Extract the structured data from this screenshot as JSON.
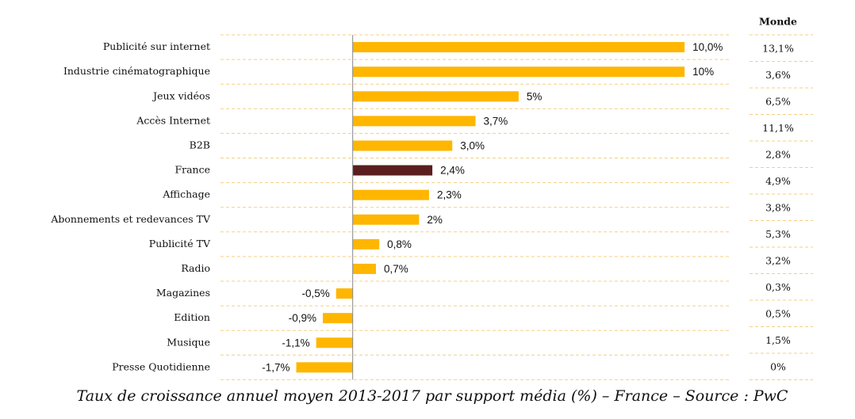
{
  "chart_data": {
    "type": "bar",
    "orientation": "horizontal",
    "caption": "Taux de croissance annuel moyen 2013-2017 par support média (%) – France – Source : PwC",
    "categories": [
      "Publicité sur internet",
      "Industrie cinématographique",
      "Jeux vidéos",
      "Accès Internet",
      "B2B",
      "France",
      "Affichage",
      "Abonnements et redevances TV",
      "Publicité TV",
      "Radio",
      "Magazines",
      "Edition",
      "Musique",
      "Presse Quotidienne"
    ],
    "values": [
      10.0,
      10,
      5,
      3.7,
      3.0,
      2.4,
      2.3,
      2,
      0.8,
      0.7,
      -0.5,
      -0.9,
      -1.1,
      -1.7
    ],
    "value_labels": [
      "10,0%",
      "10%",
      "5%",
      "3,7%",
      "3,0%",
      "2,4%",
      "2,3%",
      "2%",
      "0,8%",
      "0,7%",
      "-0,5%",
      "-0,9%",
      "-1,1%",
      "-1,7%"
    ],
    "colors": [
      "#FFB600",
      "#FFB600",
      "#FFB600",
      "#FFB600",
      "#FFB600",
      "#5A1E1E",
      "#FFB600",
      "#FFB600",
      "#FFB600",
      "#FFB600",
      "#FFB600",
      "#FFB600",
      "#FFB600",
      "#FFB600"
    ],
    "xlim": [
      -2,
      11
    ],
    "monde": {
      "title": "Monde",
      "values": [
        "13,1%",
        "3,6%",
        "6,5%",
        "11,1%",
        "2,8%",
        "4,9%",
        "3,8%",
        "5,3%",
        "3,2%",
        "0,3%",
        "0,5%",
        "1,5%",
        "0%"
      ]
    }
  }
}
